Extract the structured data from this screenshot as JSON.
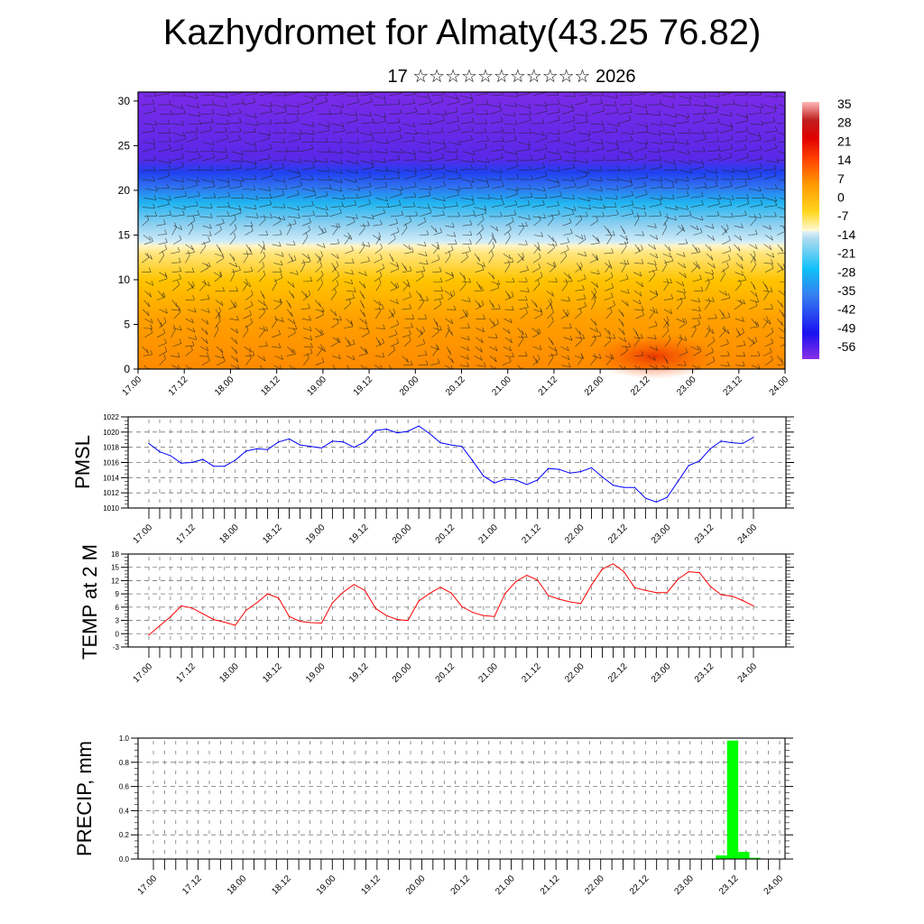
{
  "title": "Kazhydromet for Almaty(43.25 76.82)",
  "subtitle": "17 ☆☆☆☆☆☆☆☆☆☆☆ 2026",
  "chart_data": [
    {
      "type": "heatmap",
      "name": "vertical temperature cross-section with wind barbs",
      "x_tick_labels": [
        "17.00",
        "17.12",
        "18.00",
        "18.12",
        "19.00",
        "19.12",
        "20.00",
        "20.12",
        "21.00",
        "21.12",
        "22.00",
        "22.12",
        "23.00",
        "23.12",
        "24.00"
      ],
      "y_tick_labels": [
        "0",
        "5",
        "10",
        "15",
        "20",
        "25",
        "30"
      ],
      "ylim": [
        0,
        31
      ],
      "colorbar_labels": [
        "35",
        "28",
        "21",
        "14",
        "7",
        "0",
        "-7",
        "-14",
        "-21",
        "-28",
        "-35",
        "-42",
        "-49",
        "-56"
      ],
      "colors": {
        "cold": "#7b2be8",
        "mid": "#2a5cf0",
        "cyan": "#20b8f0",
        "pale": "#fff5c0",
        "warm": "#ffc000",
        "hot": "#ff8a00",
        "red": "#e82800"
      }
    },
    {
      "type": "line",
      "ylabel": "PMSL",
      "color": "#0000ff",
      "ylim": [
        1010,
        1022
      ],
      "y_tick_labels": [
        "1010",
        "1012",
        "1014",
        "1016",
        "1018",
        "1020",
        "1022"
      ],
      "x_tick_labels": [
        "17.00",
        "17.12",
        "18.00",
        "18.12",
        "19.00",
        "19.12",
        "20.00",
        "20.12",
        "21.00",
        "21.12",
        "22.00",
        "22.12",
        "23.00",
        "23.12",
        "24.00"
      ],
      "step_hours": 3,
      "values": [
        1018.5,
        1017.4,
        1016.9,
        1015.9,
        1016.0,
        1016.4,
        1015.5,
        1015.5,
        1016.3,
        1017.5,
        1017.8,
        1017.7,
        1018.7,
        1019.1,
        1018.3,
        1018.1,
        1017.9,
        1018.8,
        1018.7,
        1018.0,
        1018.7,
        1020.2,
        1020.4,
        1019.9,
        1020.1,
        1020.8,
        1019.8,
        1018.6,
        1018.3,
        1018.1,
        1016.2,
        1014.2,
        1013.3,
        1013.8,
        1013.7,
        1013.1,
        1013.7,
        1015.2,
        1015.1,
        1014.6,
        1014.8,
        1015.3,
        1014.1,
        1013.0,
        1012.7,
        1012.7,
        1011.3,
        1010.8,
        1011.4,
        1013.5,
        1015.6,
        1016.2,
        1017.8,
        1018.8,
        1018.6,
        1018.5,
        1019.3
      ]
    },
    {
      "type": "line",
      "ylabel": "TEMP at 2 M",
      "color": "#ff0000",
      "ylim": [
        -3,
        18
      ],
      "y_tick_labels": [
        "-3",
        "0",
        "3",
        "6",
        "9",
        "12",
        "15",
        "18"
      ],
      "x_tick_labels": [
        "17.00",
        "17.12",
        "18.00",
        "18.12",
        "19.00",
        "19.12",
        "20.00",
        "20.12",
        "21.00",
        "21.12",
        "22.00",
        "22.12",
        "23.00",
        "23.12",
        "24.00"
      ],
      "step_hours": 3,
      "values": [
        -0.3,
        1.8,
        3.8,
        6.3,
        5.8,
        4.5,
        3.2,
        2.6,
        1.9,
        5.3,
        7.0,
        9.0,
        8.1,
        3.9,
        2.8,
        2.5,
        2.4,
        7.0,
        9.4,
        11.1,
        9.8,
        5.7,
        4.1,
        3.2,
        3.0,
        7.4,
        9.1,
        10.5,
        9.2,
        6.1,
        4.8,
        4.1,
        3.9,
        9.1,
        11.8,
        13.2,
        12.1,
        8.6,
        7.8,
        7.2,
        6.8,
        11.0,
        14.6,
        15.8,
        14.0,
        10.4,
        9.8,
        9.3,
        9.3,
        12.3,
        14.0,
        13.8,
        10.7,
        8.8,
        8.5,
        7.5,
        6.3
      ]
    },
    {
      "type": "bar",
      "ylabel": "PRECIP, mm",
      "color": "#00ff00",
      "ylim": [
        0,
        1.0
      ],
      "y_tick_labels": [
        "0.0",
        "0.2",
        "0.4",
        "0.6",
        "0.8",
        "1.0"
      ],
      "x_tick_labels": [
        "17.00",
        "17.12",
        "18.00",
        "18.12",
        "19.00",
        "19.12",
        "20.00",
        "20.12",
        "21.00",
        "21.12",
        "22.00",
        "22.12",
        "23.00",
        "23.12",
        "24.00"
      ],
      "step_hours": 3,
      "nonzero": [
        {
          "index": 50,
          "value": 0.03
        },
        {
          "index": 51,
          "value": 0.98
        },
        {
          "index": 52,
          "value": 0.06
        },
        {
          "index": 53,
          "value": 0.01
        }
      ]
    }
  ]
}
